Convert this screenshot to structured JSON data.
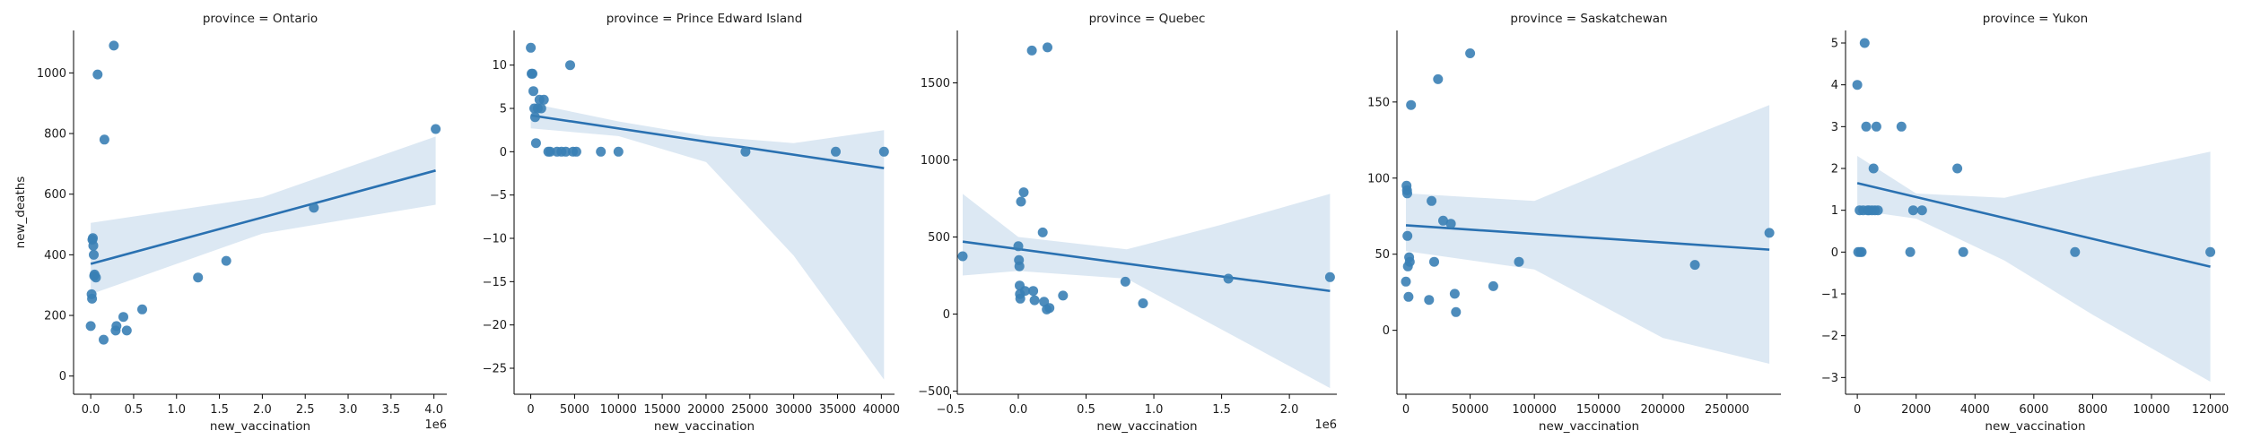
{
  "chart_data": {
    "type": "scatter",
    "layout": "facet-grid",
    "facet_label_prefix": "province = ",
    "regression": true,
    "confidence_band": true,
    "colors": {
      "point": "#3a7fb5",
      "line": "#2a71b1",
      "band": "#dce8f3"
    },
    "xlabel": "new_vaccination",
    "ylabel": "new_deaths",
    "panels": [
      {
        "facet": "Ontario",
        "title": "province = Ontario",
        "xlim": [
          -200000,
          4150000
        ],
        "ylim": [
          -60,
          1140
        ],
        "x_ticks": [
          0,
          500000,
          1000000,
          1500000,
          2000000,
          2500000,
          3000000,
          3500000,
          4000000
        ],
        "x_tick_labels": [
          "0.0",
          "0.5",
          "1.0",
          "1.5",
          "2.0",
          "2.5",
          "3.0",
          "3.5",
          "4.0"
        ],
        "x_offset": "1e6",
        "y_ticks": [
          0,
          200,
          400,
          600,
          800,
          1000
        ],
        "y_tick_labels": [
          "0",
          "200",
          "400",
          "600",
          "800",
          "1000"
        ],
        "points": [
          [
            0,
            165
          ],
          [
            10000,
            270
          ],
          [
            15000,
            255
          ],
          [
            20000,
            450
          ],
          [
            25000,
            455
          ],
          [
            30000,
            430
          ],
          [
            35000,
            400
          ],
          [
            40000,
            330
          ],
          [
            45000,
            335
          ],
          [
            60000,
            325
          ],
          [
            80000,
            995
          ],
          [
            150000,
            120
          ],
          [
            160000,
            780
          ],
          [
            270000,
            1090
          ],
          [
            290000,
            150
          ],
          [
            300000,
            165
          ],
          [
            380000,
            195
          ],
          [
            420000,
            150
          ],
          [
            600000,
            220
          ],
          [
            1250000,
            325
          ],
          [
            1580000,
            380
          ],
          [
            2600000,
            555
          ],
          [
            4020000,
            815
          ]
        ],
        "fit": [
          [
            0,
            370
          ],
          [
            4020000,
            678
          ]
        ],
        "band": [
          [
            0,
            270,
            505
          ],
          [
            2000000,
            470,
            590
          ],
          [
            4020000,
            565,
            790
          ]
        ]
      },
      {
        "facet": "Prince Edward Island",
        "title": "province = Prince Edward Island",
        "xlim": [
          -1900,
          41500
        ],
        "ylim": [
          -28,
          14
        ],
        "x_ticks": [
          0,
          5000,
          10000,
          15000,
          20000,
          25000,
          30000,
          35000,
          40000
        ],
        "x_tick_labels": [
          "0",
          "5000",
          "10000",
          "15000",
          "20000",
          "25000",
          "30000",
          "35000",
          "40000"
        ],
        "x_offset": "",
        "y_ticks": [
          -25,
          -20,
          -15,
          -10,
          -5,
          0,
          5,
          10
        ],
        "y_tick_labels": [
          "−25",
          "−20",
          "−15",
          "−10",
          "−5",
          "0",
          "5",
          "10"
        ],
        "points": [
          [
            0,
            12
          ],
          [
            100,
            9
          ],
          [
            200,
            9
          ],
          [
            300,
            7
          ],
          [
            400,
            5
          ],
          [
            500,
            4
          ],
          [
            600,
            1
          ],
          [
            800,
            5
          ],
          [
            1000,
            6
          ],
          [
            1200,
            5
          ],
          [
            1500,
            6
          ],
          [
            2000,
            0
          ],
          [
            2200,
            0
          ],
          [
            3000,
            0
          ],
          [
            3500,
            0
          ],
          [
            4000,
            0
          ],
          [
            4500,
            10
          ],
          [
            4800,
            0
          ],
          [
            5200,
            0
          ],
          [
            8000,
            0
          ],
          [
            10000,
            0
          ],
          [
            24500,
            0
          ],
          [
            34800,
            0
          ],
          [
            40300,
            0
          ]
        ],
        "fit": [
          [
            0,
            4.2
          ],
          [
            40300,
            -1.9
          ]
        ],
        "band": [
          [
            0,
            2.7,
            5.6
          ],
          [
            10000,
            1.8,
            3.5
          ],
          [
            20000,
            -1.2,
            1.8
          ],
          [
            30000,
            -12,
            1.0
          ],
          [
            40300,
            -26.3,
            2.5
          ]
        ]
      },
      {
        "facet": "Quebec",
        "title": "province = Quebec",
        "xlim": [
          -450000,
          2350000
        ],
        "ylim": [
          -520,
          1840
        ],
        "x_ticks": [
          -500000,
          0,
          500000,
          1000000,
          1500000,
          2000000
        ],
        "x_tick_labels": [
          "−0.5",
          "0.0",
          "0.5",
          "1.0",
          "1.5",
          "2.0"
        ],
        "x_offset": "1e6",
        "y_ticks": [
          -500,
          0,
          500,
          1000,
          1500
        ],
        "y_tick_labels": [
          "−500",
          "0",
          "500",
          "1000",
          "1500"
        ],
        "points": [
          [
            -410000,
            375
          ],
          [
            0,
            440
          ],
          [
            5000,
            350
          ],
          [
            8000,
            310
          ],
          [
            10000,
            185
          ],
          [
            12000,
            130
          ],
          [
            15000,
            100
          ],
          [
            20000,
            730
          ],
          [
            40000,
            790
          ],
          [
            50000,
            150
          ],
          [
            100000,
            1710
          ],
          [
            110000,
            150
          ],
          [
            120000,
            90
          ],
          [
            180000,
            530
          ],
          [
            190000,
            80
          ],
          [
            210000,
            30
          ],
          [
            215000,
            1730
          ],
          [
            230000,
            40
          ],
          [
            330000,
            120
          ],
          [
            790000,
            210
          ],
          [
            920000,
            70
          ],
          [
            1550000,
            230
          ],
          [
            2300000,
            240
          ]
        ],
        "fit": [
          [
            -410000,
            470
          ],
          [
            2300000,
            150
          ]
        ],
        "band": [
          [
            -410000,
            250,
            780
          ],
          [
            0,
            280,
            500
          ],
          [
            800000,
            230,
            420
          ],
          [
            1500000,
            -100,
            580
          ],
          [
            2300000,
            -480,
            780
          ]
        ]
      },
      {
        "facet": "Saskatchewan",
        "title": "province = Saskatchewan",
        "xlim": [
          -7000,
          292000
        ],
        "ylim": [
          -42,
          197
        ],
        "x_ticks": [
          0,
          50000,
          100000,
          150000,
          200000,
          250000
        ],
        "x_tick_labels": [
          "0",
          "50000",
          "100000",
          "150000",
          "200000",
          "250000"
        ],
        "x_offset": "",
        "y_ticks": [
          0,
          50,
          100,
          150
        ],
        "y_tick_labels": [
          "0",
          "50",
          "100",
          "150"
        ],
        "points": [
          [
            0,
            32
          ],
          [
            500,
            95
          ],
          [
            800,
            92
          ],
          [
            1000,
            90
          ],
          [
            1200,
            62
          ],
          [
            1500,
            42
          ],
          [
            2000,
            22
          ],
          [
            2500,
            48
          ],
          [
            3000,
            45
          ],
          [
            4000,
            148
          ],
          [
            18000,
            20
          ],
          [
            20000,
            85
          ],
          [
            22000,
            45
          ],
          [
            25000,
            165
          ],
          [
            29000,
            72
          ],
          [
            35000,
            70
          ],
          [
            38000,
            24
          ],
          [
            39000,
            12
          ],
          [
            50000,
            182
          ],
          [
            68000,
            29
          ],
          [
            88000,
            45
          ],
          [
            225000,
            43
          ],
          [
            283000,
            64
          ]
        ],
        "fit": [
          [
            0,
            69
          ],
          [
            283000,
            53
          ]
        ],
        "band": [
          [
            0,
            52,
            90
          ],
          [
            100000,
            40,
            85
          ],
          [
            200000,
            -5,
            120
          ],
          [
            283000,
            -22,
            148
          ]
        ]
      },
      {
        "facet": "Yukon",
        "title": "province = Yukon",
        "xlim": [
          -400,
          12500
        ],
        "ylim": [
          -3.4,
          5.3
        ],
        "x_ticks": [
          0,
          2000,
          4000,
          6000,
          8000,
          10000,
          12000
        ],
        "x_tick_labels": [
          "0",
          "2000",
          "4000",
          "6000",
          "8000",
          "10000",
          "12000"
        ],
        "x_offset": "",
        "y_ticks": [
          -3,
          -2,
          -1,
          0,
          1,
          2,
          3,
          4,
          5
        ],
        "y_tick_labels": [
          "−3",
          "−2",
          "−1",
          "0",
          "1",
          "2",
          "3",
          "4",
          "5"
        ],
        "points": [
          [
            0,
            4
          ],
          [
            30,
            0
          ],
          [
            80,
            1
          ],
          [
            100,
            0
          ],
          [
            150,
            0
          ],
          [
            200,
            1
          ],
          [
            250,
            5
          ],
          [
            300,
            3
          ],
          [
            350,
            1
          ],
          [
            400,
            1
          ],
          [
            500,
            1
          ],
          [
            550,
            2
          ],
          [
            600,
            1
          ],
          [
            650,
            3
          ],
          [
            700,
            1
          ],
          [
            1500,
            3
          ],
          [
            1800,
            0
          ],
          [
            1900,
            1
          ],
          [
            2200,
            1
          ],
          [
            3400,
            2
          ],
          [
            3600,
            0
          ],
          [
            7400,
            0
          ],
          [
            12000,
            0
          ]
        ],
        "fit": [
          [
            0,
            1.65
          ],
          [
            12000,
            -0.35
          ]
        ],
        "band": [
          [
            0,
            1.0,
            2.3
          ],
          [
            2000,
            0.8,
            1.4
          ],
          [
            5000,
            -0.2,
            1.3
          ],
          [
            8000,
            -1.5,
            1.8
          ],
          [
            12000,
            -3.1,
            2.4
          ]
        ]
      }
    ]
  }
}
